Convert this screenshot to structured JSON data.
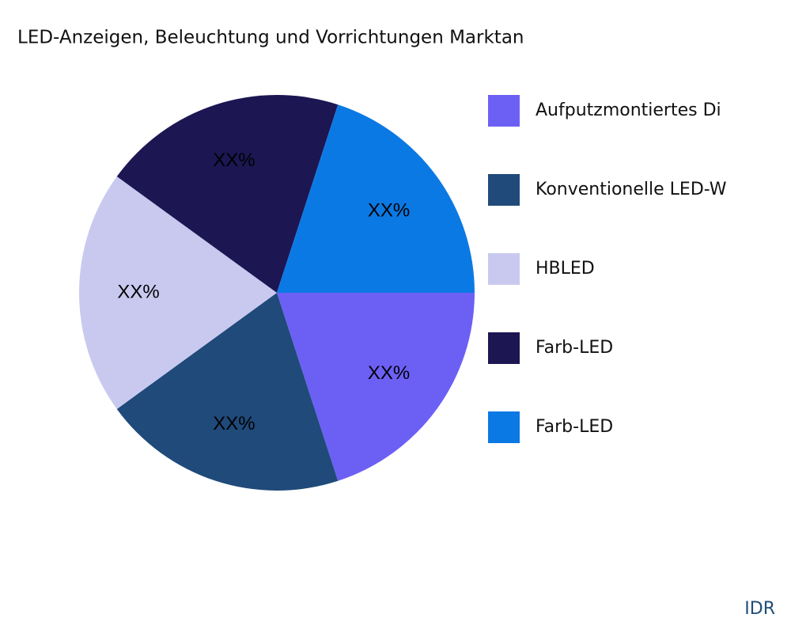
{
  "chart_data": {
    "type": "pie",
    "title": "LED-Anzeigen, Beleuchtung und Vorrichtungen Marktan",
    "categories": [
      "Aufputzmontiertes Di",
      "Konventionelle LED-W",
      "HBLED",
      "Farb-LED",
      "Farb-LED"
    ],
    "values": [
      20,
      20,
      20,
      20,
      20
    ],
    "value_labels": [
      "XX%",
      "XX%",
      "XX%",
      "XX%",
      "XX%"
    ],
    "colors": [
      "#6c60f4",
      "#1f4a7a",
      "#c9c9f0",
      "#1c1652",
      "#0b79e4"
    ],
    "legend": "right",
    "watermark": "IDR"
  }
}
